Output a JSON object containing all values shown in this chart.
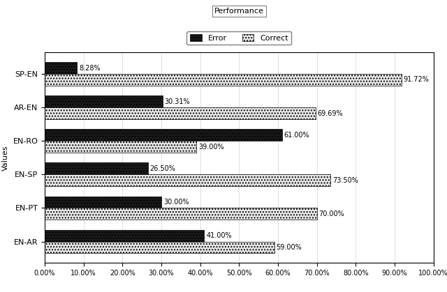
{
  "categories": [
    "SP-EN",
    "AR-EN",
    "EN-RO",
    "EN-SP",
    "EN-PT",
    "EN-AR"
  ],
  "error_values": [
    8.28,
    30.31,
    61.0,
    26.5,
    30.0,
    41.0
  ],
  "correct_values": [
    91.72,
    69.69,
    39.0,
    73.5,
    70.0,
    59.0
  ],
  "error_labels": [
    "8.28%",
    "30.31%",
    "61.00%",
    "26.50%",
    "30.00%",
    "41.00%"
  ],
  "correct_labels": [
    "91.72%",
    "69.69%",
    "39.00%",
    "73.50%",
    "70.00%",
    "59.00%"
  ],
  "error_color": "#1a1a1a",
  "correct_color": "#e8e8e8",
  "error_hatch": "....",
  "correct_hatch": "....",
  "title": "Performance",
  "ylabel": "Values",
  "xlabel": "",
  "xlim": [
    0,
    100
  ],
  "xtick_labels": [
    "0.00%",
    "10.00%",
    "20.00%",
    "30.00%",
    "40.00%",
    "50.00%",
    "60.00%",
    "70.00%",
    "80.00%",
    "90.00%",
    "100.00%"
  ],
  "xtick_values": [
    0,
    10,
    20,
    30,
    40,
    50,
    60,
    70,
    80,
    90,
    100
  ],
  "tab_labels": [
    "EN-AR",
    "EN-PT",
    "EN-SP",
    "EN-RO",
    "AR-EN",
    "SP-EN"
  ],
  "legend_error": "Error",
  "legend_correct": "Correct",
  "bar_height": 0.35,
  "figsize": [
    6.4,
    4.19
  ],
  "dpi": 100
}
